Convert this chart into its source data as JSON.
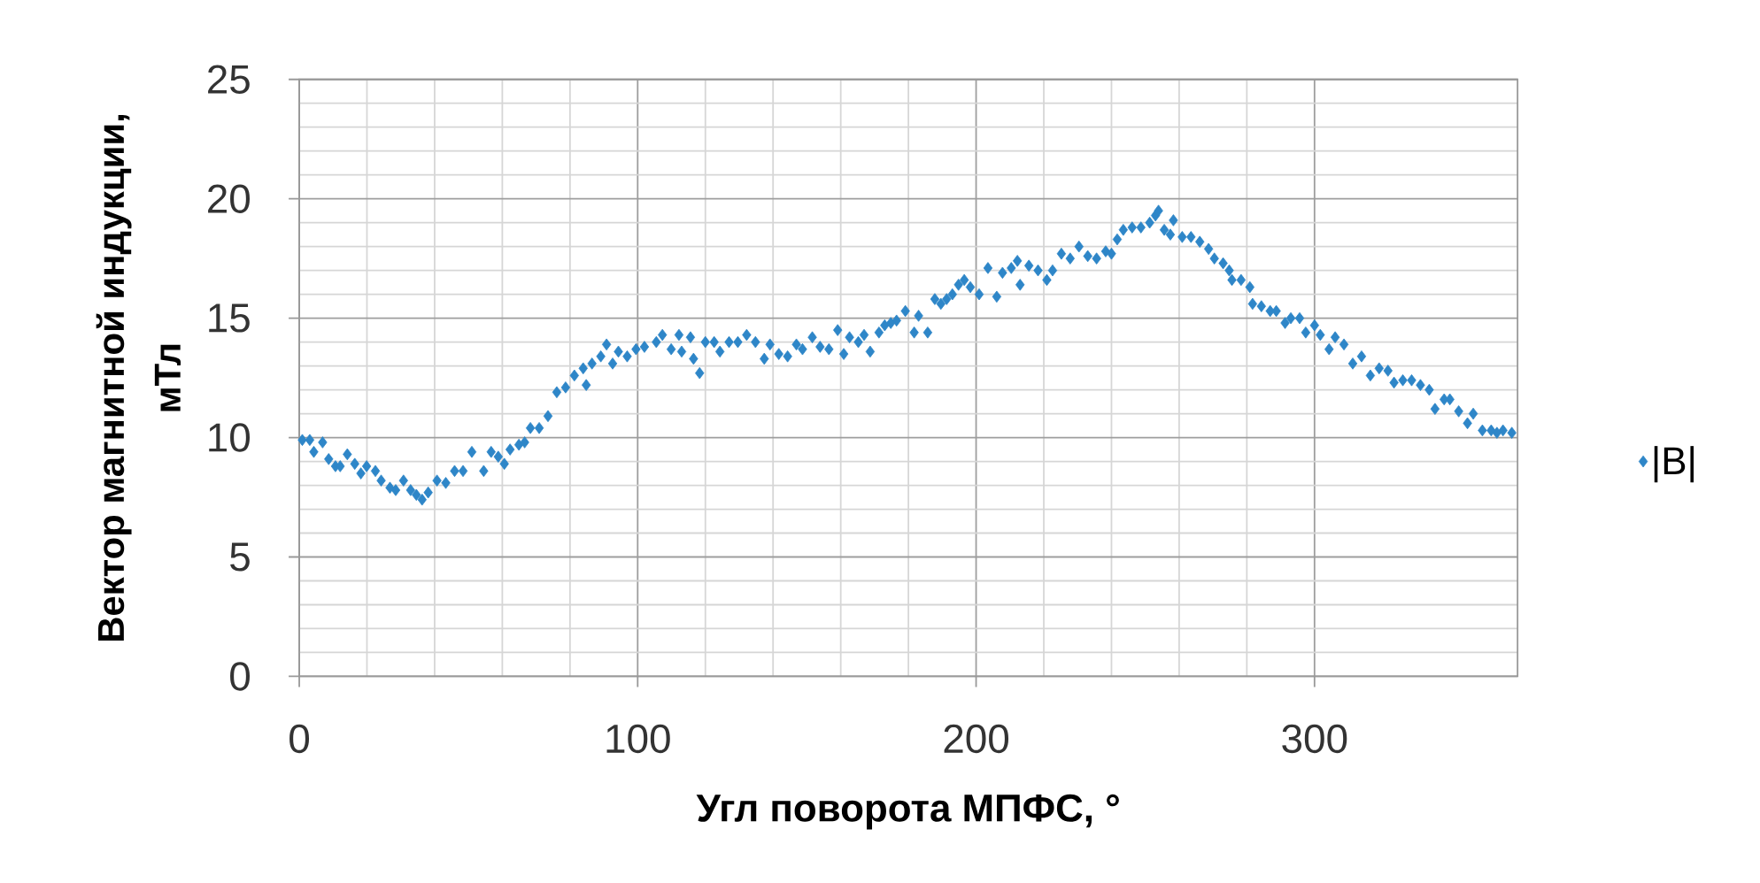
{
  "chart_data": {
    "type": "scatter",
    "xlabel": "Угл поворота МПФС, °",
    "ylabel": "Вектор магнитной индукции, мТл",
    "xlim": [
      0,
      360
    ],
    "ylim": [
      0,
      25
    ],
    "xticks": [
      0,
      100,
      200,
      300
    ],
    "yticks": [
      0,
      5,
      10,
      15,
      20,
      25
    ],
    "grid": true,
    "legend": "right",
    "marker": "diamond",
    "series": [
      {
        "name": "|B|",
        "color": "#2e86c8",
        "x": [
          0.9,
          3.1,
          4.3,
          6.9,
          8.7,
          10.7,
          12.1,
          14.2,
          16.4,
          18.2,
          19.9,
          22.5,
          24.2,
          26.8,
          28.5,
          30.8,
          32.9,
          34.6,
          36.3,
          38.1,
          40.7,
          43.3,
          45.9,
          48.4,
          51.0,
          54.5,
          56.7,
          58.8,
          60.6,
          62.3,
          64.9,
          66.6,
          68.3,
          70.9,
          73.5,
          76.1,
          78.7,
          81.3,
          83.9,
          84.8,
          86.5,
          89.1,
          90.8,
          92.6,
          94.3,
          96.9,
          99.5,
          102.0,
          105.5,
          107.3,
          109.9,
          112.2,
          113.0,
          115.6,
          116.5,
          118.3,
          120.0,
          122.6,
          124.3,
          127.0,
          129.6,
          132.2,
          134.8,
          137.4,
          139.1,
          141.7,
          144.3,
          146.9,
          148.7,
          151.6,
          153.9,
          156.5,
          159.1,
          160.9,
          162.6,
          165.2,
          166.9,
          168.7,
          171.3,
          173.0,
          174.8,
          176.5,
          179.1,
          181.7,
          183.0,
          185.7,
          187.8,
          189.6,
          191.3,
          193.0,
          194.8,
          196.5,
          198.3,
          200.9,
          203.5,
          206.1,
          207.8,
          210.4,
          212.2,
          213.0,
          215.6,
          218.3,
          220.9,
          222.6,
          225.2,
          227.8,
          230.4,
          233.0,
          235.6,
          238.3,
          240.0,
          241.7,
          243.5,
          246.1,
          248.7,
          251.3,
          253.0,
          253.9,
          255.6,
          257.4,
          258.3,
          260.9,
          263.5,
          266.1,
          268.7,
          270.4,
          273.0,
          274.8,
          275.6,
          278.3,
          280.9,
          281.7,
          284.3,
          286.9,
          288.7,
          291.3,
          293.0,
          295.6,
          297.4,
          300.0,
          301.7,
          304.3,
          306.1,
          308.7,
          311.3,
          313.9,
          316.5,
          319.1,
          321.7,
          323.5,
          326.1,
          328.7,
          331.3,
          333.9,
          335.6,
          338.3,
          340.0,
          342.6,
          345.2,
          346.9,
          349.6,
          352.2,
          353.9,
          355.7,
          358.3
        ],
        "values": [
          9.9,
          9.9,
          9.4,
          9.8,
          9.1,
          8.8,
          8.8,
          9.3,
          8.9,
          8.5,
          8.8,
          8.6,
          8.2,
          7.9,
          7.8,
          8.2,
          7.8,
          7.6,
          7.4,
          7.7,
          8.2,
          8.1,
          8.6,
          8.6,
          9.4,
          8.6,
          9.4,
          9.2,
          8.9,
          9.5,
          9.7,
          9.8,
          10.4,
          10.4,
          10.9,
          11.9,
          12.1,
          12.6,
          12.9,
          12.2,
          13.1,
          13.4,
          13.9,
          13.1,
          13.6,
          13.4,
          13.7,
          13.8,
          14.0,
          14.3,
          13.7,
          14.3,
          13.6,
          14.2,
          13.3,
          12.7,
          14.0,
          14.0,
          13.6,
          14.0,
          14.0,
          14.3,
          14.0,
          13.3,
          13.9,
          13.5,
          13.4,
          13.9,
          13.7,
          14.2,
          13.8,
          13.7,
          14.5,
          13.5,
          14.2,
          14.0,
          14.3,
          13.6,
          14.4,
          14.7,
          14.8,
          14.9,
          15.3,
          14.4,
          15.1,
          14.4,
          15.8,
          15.6,
          15.8,
          16.0,
          16.4,
          16.6,
          16.3,
          16.0,
          17.1,
          15.9,
          16.9,
          17.1,
          17.4,
          16.4,
          17.2,
          17.0,
          16.6,
          17.0,
          17.7,
          17.5,
          18.0,
          17.6,
          17.5,
          17.8,
          17.7,
          18.3,
          18.7,
          18.8,
          18.8,
          19.0,
          19.3,
          19.5,
          18.7,
          18.5,
          19.1,
          18.4,
          18.4,
          18.2,
          17.9,
          17.5,
          17.3,
          17.0,
          16.6,
          16.6,
          16.3,
          15.6,
          15.5,
          15.3,
          15.3,
          14.8,
          15.0,
          15.0,
          14.4,
          14.7,
          14.3,
          13.7,
          14.2,
          13.9,
          13.1,
          13.4,
          12.6,
          12.9,
          12.8,
          12.3,
          12.4,
          12.4,
          12.2,
          12.0,
          11.2,
          11.6,
          11.6,
          11.1,
          10.6,
          11.0,
          10.3,
          10.3,
          10.2,
          10.3,
          10.2
        ]
      }
    ]
  }
}
